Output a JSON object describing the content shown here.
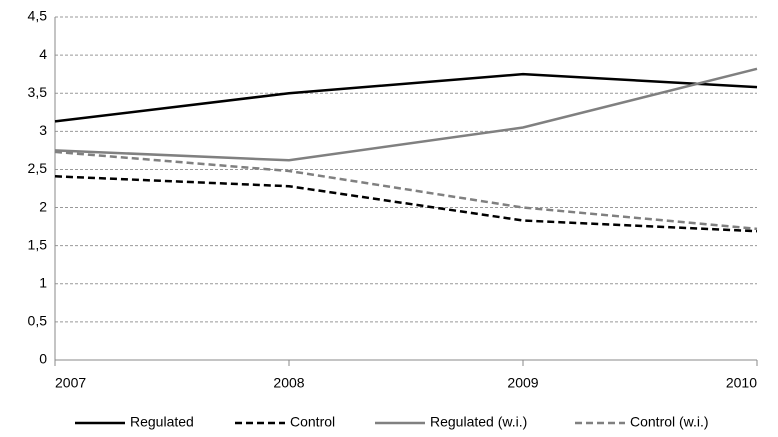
{
  "chart_data": {
    "type": "line",
    "x": [
      2007,
      2008,
      2009,
      2010
    ],
    "xlim": [
      2007,
      2010
    ],
    "xticks": [
      2007,
      2008,
      2009,
      2010
    ],
    "ylim": [
      0,
      4.5
    ],
    "yticks": [
      0,
      {
        "value": 0.5,
        "label": "0,5"
      },
      1,
      {
        "value": 1.5,
        "label": "1,5"
      },
      2,
      {
        "value": 2.5,
        "label": "2,5"
      },
      3,
      {
        "value": 3.5,
        "label": "3,5"
      },
      4,
      {
        "value": 4.5,
        "label": "4,5"
      }
    ],
    "grid": true,
    "legend": "bottom",
    "series": [
      {
        "name": "Regulated",
        "color": "#000000",
        "dashed": false,
        "values": [
          3.13,
          3.5,
          3.75,
          3.58
        ]
      },
      {
        "name": "Control",
        "color": "#000000",
        "dashed": true,
        "values": [
          2.41,
          2.28,
          1.83,
          1.69
        ]
      },
      {
        "name": "Regulated (w.i.)",
        "color": "#808080",
        "dashed": false,
        "values": [
          2.75,
          2.62,
          3.05,
          3.82
        ]
      },
      {
        "name": "Control (w.i.)",
        "color": "#808080",
        "dashed": true,
        "values": [
          2.73,
          2.48,
          2.0,
          1.72
        ]
      }
    ]
  }
}
